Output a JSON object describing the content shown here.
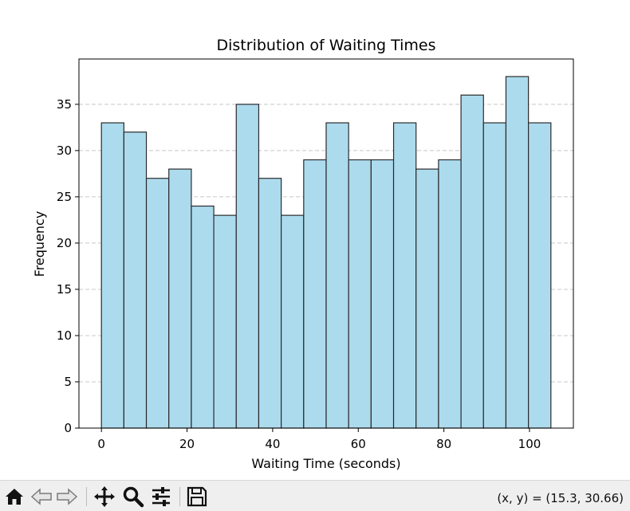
{
  "chart_data": {
    "type": "bar",
    "title": "Distribution of Waiting Times",
    "xlabel": "Waiting Time (seconds)",
    "ylabel": "Frequency",
    "bins_start": [
      0,
      5.25,
      10.5,
      15.75,
      21,
      26.25,
      31.5,
      36.75,
      42,
      47.25,
      52.5,
      57.75,
      63,
      68.25,
      73.5,
      78.75,
      84,
      89.25,
      94.5,
      99.75
    ],
    "bin_width": 5.25,
    "values": [
      33,
      32,
      27,
      28,
      24,
      23,
      35,
      27,
      23,
      29,
      33,
      29,
      29,
      33,
      28,
      29,
      36,
      33,
      38,
      33
    ],
    "xlim": [
      -5.25,
      110.25
    ],
    "ylim": [
      0,
      39.9
    ],
    "xticks": [
      0,
      20,
      40,
      60,
      80,
      100
    ],
    "yticks": [
      0,
      5,
      10,
      15,
      20,
      25,
      30,
      35
    ],
    "grid": "y-dashed",
    "bar_color": "#ADDBEE",
    "edge_color": "#2b2b2b"
  },
  "toolbar": {
    "items": [
      "home",
      "back",
      "forward",
      "pan",
      "zoom",
      "configure",
      "save"
    ],
    "coords_text": "(x, y) = (15.3, 30.66)"
  }
}
